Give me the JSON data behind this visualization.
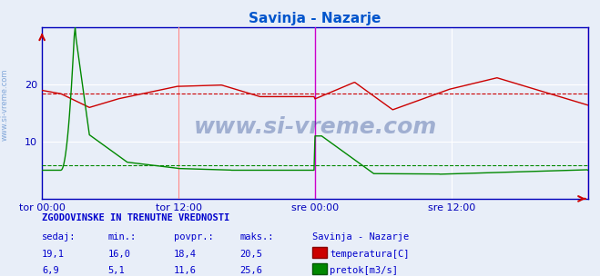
{
  "title": "Savinja - Nazarje",
  "title_color": "#0055cc",
  "bg_color": "#e8eef8",
  "plot_bg_color": "#e8eef8",
  "grid_color": "#ffffff",
  "axis_color": "#0000bb",
  "ylim": [
    0,
    30
  ],
  "yticks": [
    10,
    20
  ],
  "n_points": 577,
  "xtick_positions": [
    0,
    144,
    288,
    432,
    576
  ],
  "xtick_labels": [
    "tor 00:00",
    "tor 12:00",
    "sre 00:00",
    "sre 12:00",
    ""
  ],
  "temp_color": "#cc0000",
  "flow_color": "#008800",
  "temp_avg": 18.4,
  "flow_avg": 5.8,
  "vline_positions": [
    144,
    288,
    576
  ],
  "vline_colors": [
    "#ff8888",
    "#cc00cc",
    "#cc00cc"
  ],
  "bottom_title": "ZGODOVINSKE IN TRENUTNE VREDNOSTI",
  "bottom_color": "#0000cc",
  "headers": [
    "sedaj:",
    "min.:",
    "povpr.:",
    "maks.:",
    "Savinja - Nazarje"
  ],
  "temp_stats": [
    "19,1",
    "16,0",
    "18,4",
    "20,5"
  ],
  "flow_stats": [
    "6,9",
    "5,1",
    "11,6",
    "25,6"
  ],
  "temp_label": "temperatura[C]",
  "flow_label": "pretok[m3/s]",
  "sidebar_text": "www.si-vreme.com",
  "watermark": "www.si-vreme.com"
}
